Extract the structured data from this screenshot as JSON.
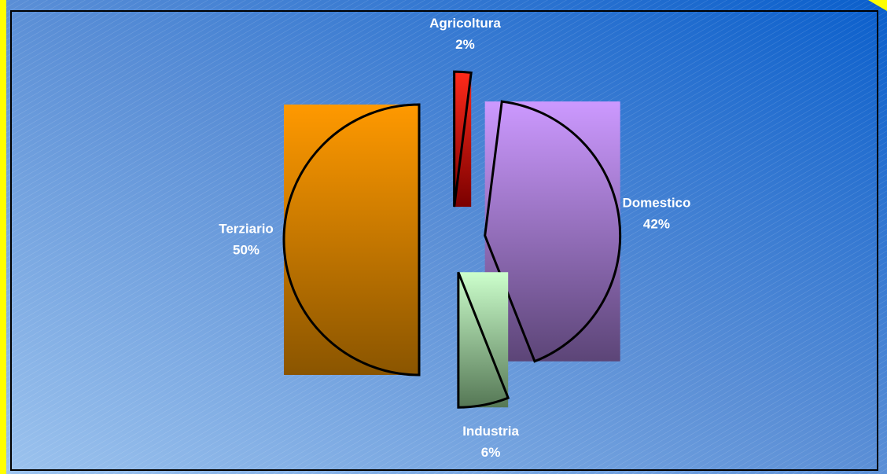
{
  "chart_data": {
    "type": "pie",
    "categories": [
      "Agricoltura",
      "Domestico",
      "Industria",
      "Terziario"
    ],
    "values": [
      2,
      42,
      6,
      50
    ],
    "value_labels": [
      "2%",
      "42%",
      "6%",
      "50%"
    ],
    "colors": [
      [
        "#ff2a1a",
        "#7a0000"
      ],
      [
        "#cc99ff",
        "#5c4577"
      ],
      [
        "#ccffcc",
        "#557755"
      ],
      [
        "#ff9900",
        "#8a5500"
      ]
    ]
  }
}
